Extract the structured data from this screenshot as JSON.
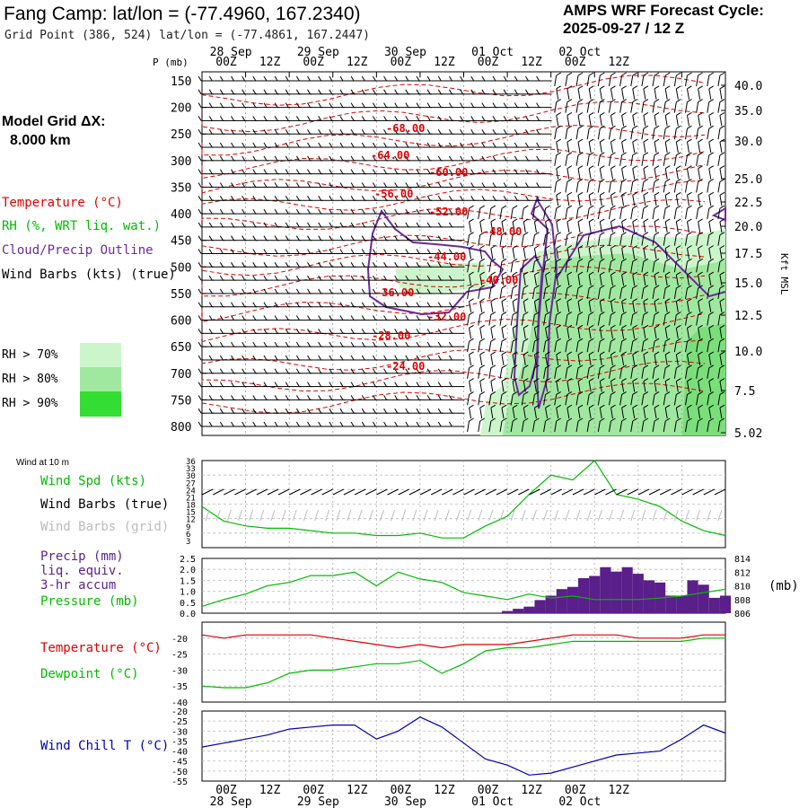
{
  "header": {
    "title": "Fang Camp:  lat/lon = (-77.4960, 167.2340)",
    "grid_point": "Grid Point (386, 524) lat/lon = (-77.4861, 167.2447)",
    "cycle_label": "AMPS WRF Forecast Cycle:",
    "cycle_value": "2025-09-27 / 12  Z"
  },
  "left_legend": {
    "model_grid": "Model Grid ΔX:",
    "model_grid_value": "8.000 km",
    "temperature": "Temperature (°C)",
    "rh": "RH (%, WRT liq. wat.)",
    "cloud": "Cloud/Precip Outline",
    "wind_barbs": "Wind Barbs (kts) (true)",
    "rh_levels": [
      {
        "label": "RH > 70%",
        "color": "#ccf5cc"
      },
      {
        "label": "RH > 80%",
        "color": "#a0e8a0"
      },
      {
        "label": "RH > 90%",
        "color": "#33dd33"
      }
    ]
  },
  "lower_legend": {
    "wind_10m": "Wind at 10 m",
    "wind_spd": "Wind Spd (kts)",
    "wind_barbs_true": "Wind Barbs (true)",
    "wind_barbs_grid": "Wind Barbs (grid)",
    "precip": "Precip (mm)",
    "liq": "liq. equiv.",
    "accum": "3-hr accum",
    "pressure": "Pressure (mb)",
    "pressure_unit": "(mb)",
    "temperature": "Temperature (°C)",
    "dewpoint": "Dewpoint (°C)",
    "wind_chill": "Wind Chill T (°C)"
  },
  "colors": {
    "temperature": "#dd0000",
    "dewpoint": "#00bb00",
    "wind_speed": "#00bb00",
    "precip": "#5a1f8a",
    "cloud_outline": "#6a2a9a",
    "wind_chill": "#0000aa",
    "barbs_grid": "#bbbbbb"
  },
  "chart_data": [
    {
      "type": "heatmap",
      "name": "time-height cross section",
      "ylabel": "P (mb)",
      "y2label": "Kft MSL",
      "time_labels_top": [
        "00Z",
        "12Z",
        "00Z",
        "12Z",
        "00Z",
        "12Z",
        "00Z",
        "12Z",
        "00Z",
        "12Z"
      ],
      "date_labels_top": [
        "28 Sep",
        "29 Sep",
        "30 Sep",
        "01 Oct",
        "02 Oct"
      ],
      "pressure_ticks": [
        "150",
        "200",
        "250",
        "300",
        "350",
        "400",
        "450",
        "500",
        "550",
        "600",
        "650",
        "700",
        "750",
        "800"
      ],
      "height_ticks": [
        "40.0",
        "35.0",
        "30.0",
        "25.0",
        "22.5",
        "20.0",
        "17.5",
        "15.0",
        "12.5",
        "10.0",
        "7.5",
        "5.02"
      ],
      "temperature_labels": [
        "-68.00",
        "-64.00",
        "-60.00",
        "-56.00",
        "-52.00",
        "-48.00",
        "-44.00",
        "-40.00",
        "-36.00",
        "-32.00",
        "-28.00",
        "-24.00"
      ]
    },
    {
      "type": "line",
      "name": "10 m wind speed",
      "ylim": [
        0,
        36
      ],
      "yticks": [
        "36",
        "33",
        "30",
        "27",
        "24",
        "21",
        "18",
        "15",
        "12",
        "9",
        "6",
        "3"
      ],
      "x_hours": [
        0,
        6,
        12,
        18,
        24,
        30,
        36,
        42,
        48,
        54,
        60,
        66,
        72,
        78,
        84,
        90,
        96,
        102,
        108,
        114,
        120,
        126,
        132,
        138,
        144
      ],
      "wind_speed": [
        17,
        11,
        9,
        8,
        8,
        7,
        6,
        6,
        5,
        5,
        6,
        4,
        4,
        9,
        13,
        22,
        30,
        28,
        36,
        22,
        20,
        17,
        11,
        7,
        5
      ]
    },
    {
      "type": "bar",
      "name": "3-hr precip and pressure",
      "ylim": [
        0,
        2.5
      ],
      "yticks": [
        "2.5",
        "2.0",
        "1.5",
        "1.0",
        "0.5",
        "0.0"
      ],
      "y2ticks": [
        "814",
        "812",
        "810",
        "808",
        "806"
      ],
      "precip_hours": [
        84,
        87,
        90,
        93,
        96,
        99,
        102,
        105,
        108,
        111,
        114,
        117,
        120,
        123,
        126,
        129,
        132,
        135,
        138,
        141,
        144
      ],
      "precip_mm": [
        0.1,
        0.2,
        0.3,
        0.6,
        0.8,
        1.1,
        1.2,
        1.6,
        1.7,
        2.1,
        1.9,
        2.1,
        1.8,
        1.5,
        1.4,
        0.8,
        0.8,
        1.5,
        1.3,
        0.7,
        0.8
      ],
      "pressure_hours": [
        0,
        6,
        12,
        18,
        24,
        30,
        36,
        42,
        48,
        54,
        60,
        66,
        72,
        78,
        84,
        90,
        96,
        102,
        108,
        114,
        120,
        126,
        132,
        138,
        144
      ],
      "pressure_mb": [
        807.0,
        808.0,
        808.8,
        810.0,
        810.5,
        811.5,
        811.5,
        812.0,
        810.0,
        812.0,
        811.0,
        810.5,
        809.0,
        808.5,
        808.0,
        808.8,
        808.2,
        808.5,
        808.0,
        808.0,
        808.0,
        808.2,
        808.5,
        809.0,
        809.5
      ]
    },
    {
      "type": "line",
      "name": "temperature and dewpoint",
      "ylim": [
        -40,
        -15
      ],
      "yticks": [
        "-20",
        "-25",
        "-30",
        "-35",
        "-40"
      ],
      "x_hours": [
        0,
        6,
        12,
        18,
        24,
        30,
        36,
        42,
        48,
        54,
        60,
        66,
        72,
        78,
        84,
        90,
        96,
        102,
        108,
        114,
        120,
        126,
        132,
        138,
        144
      ],
      "temperature": [
        -19,
        -20,
        -19,
        -19,
        -19,
        -19,
        -20,
        -21,
        -22,
        -23,
        -22,
        -23,
        -22,
        -22,
        -22,
        -21,
        -20,
        -19,
        -19,
        -19,
        -20,
        -20,
        -20,
        -19,
        -19
      ],
      "dewpoint": [
        -35,
        -35.5,
        -35.5,
        -34,
        -31,
        -30,
        -30,
        -29,
        -28,
        -28,
        -27,
        -31,
        -28,
        -24,
        -23,
        -23,
        -22,
        -21,
        -21,
        -21,
        -21,
        -21,
        -21,
        -20,
        -20
      ]
    },
    {
      "type": "line",
      "name": "wind chill",
      "ylim": [
        -55,
        -20
      ],
      "yticks": [
        "-20",
        "-25",
        "-30",
        "-35",
        "-40",
        "-45",
        "-50",
        "-55"
      ],
      "x_hours": [
        0,
        6,
        12,
        18,
        24,
        30,
        36,
        42,
        48,
        54,
        60,
        66,
        72,
        78,
        84,
        90,
        96,
        102,
        108,
        114,
        120,
        126,
        132,
        138,
        144
      ],
      "wind_chill": [
        -38,
        -36,
        -34,
        -32,
        -29,
        -28,
        -27,
        -27,
        -34,
        -30,
        -23,
        -28,
        -36,
        -44,
        -47,
        -52,
        -51,
        -48,
        -45,
        -42,
        -41,
        -40,
        -34,
        -27,
        -31
      ],
      "time_labels_bottom": [
        "00Z",
        "12Z",
        "00Z",
        "12Z",
        "00Z",
        "12Z",
        "00Z",
        "12Z",
        "00Z",
        "12Z"
      ],
      "date_labels_bottom": [
        "28 Sep",
        "29 Sep",
        "30 Sep",
        "01 Oct",
        "02 Oct"
      ]
    }
  ]
}
